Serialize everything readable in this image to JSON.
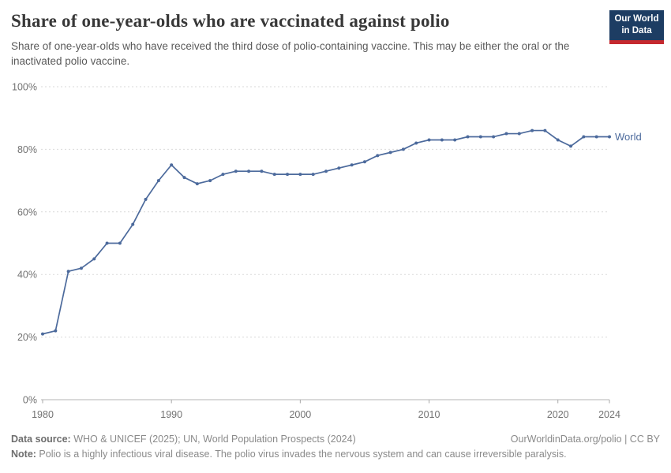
{
  "header": {
    "title": "Share of one-year-olds who are vaccinated against polio",
    "subtitle": "Share of one-year-olds who have received the third dose of polio-containing vaccine. This may be either the oral or the inactivated polio vaccine.",
    "logo": {
      "line1": "Our World",
      "line2": "in Data",
      "bg_color": "#1d3d63",
      "accent_color": "#c5292f"
    }
  },
  "chart_data": {
    "type": "line",
    "title": "Share of one-year-olds who are vaccinated against polio",
    "xlabel": "",
    "ylabel": "",
    "xlim": [
      1980,
      2024
    ],
    "ylim": [
      0,
      100
    ],
    "x_ticks": [
      1980,
      1990,
      2000,
      2010,
      2020,
      2024
    ],
    "y_ticks": [
      0,
      20,
      40,
      60,
      80,
      100
    ],
    "y_tick_suffix": "%",
    "grid": "horizontal-dashed",
    "legend_position": "end-of-line",
    "series": [
      {
        "name": "World",
        "color": "#4C6A9C",
        "x": [
          1980,
          1981,
          1982,
          1983,
          1984,
          1985,
          1986,
          1987,
          1988,
          1989,
          1990,
          1991,
          1992,
          1993,
          1994,
          1995,
          1996,
          1997,
          1998,
          1999,
          2000,
          2001,
          2002,
          2003,
          2004,
          2005,
          2006,
          2007,
          2008,
          2009,
          2010,
          2011,
          2012,
          2013,
          2014,
          2015,
          2016,
          2017,
          2018,
          2019,
          2020,
          2021,
          2022,
          2023,
          2024
        ],
        "values": [
          21,
          22,
          41,
          42,
          45,
          50,
          50,
          56,
          64,
          70,
          75,
          71,
          69,
          70,
          72,
          73,
          73,
          73,
          72,
          72,
          72,
          72,
          73,
          74,
          75,
          76,
          78,
          79,
          80,
          82,
          83,
          83,
          83,
          84,
          84,
          84,
          85,
          85,
          86,
          86,
          83,
          81,
          84,
          84,
          84
        ]
      }
    ]
  },
  "footer": {
    "datasource_label": "Data source:",
    "datasource_text": " WHO & UNICEF (2025); UN, World Population Prospects (2024)",
    "attribution": "OurWorldinData.org/polio | CC BY",
    "note_label": "Note:",
    "note_text": " Polio is a highly infectious viral disease. The polio virus invades the nervous system and can cause irreversible paralysis."
  }
}
